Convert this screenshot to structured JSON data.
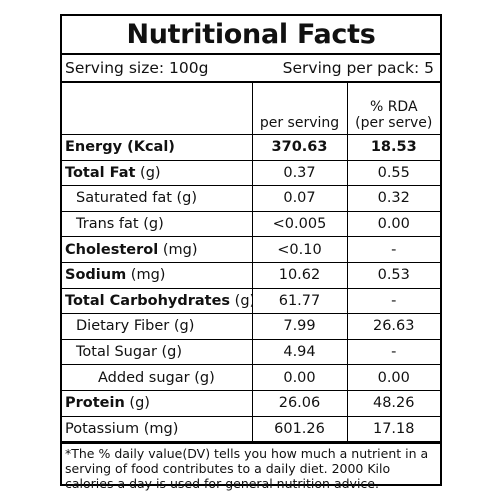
{
  "title": "Nutritional Facts",
  "serving": {
    "size": "Serving size: 100g",
    "per_pack": "Serving per pack: 5"
  },
  "header": {
    "per_serving": "per serving",
    "rda_line1": "% RDA",
    "rda_line2": "(per serve)"
  },
  "rows": [
    {
      "name": "Energy (Kcal)",
      "per_serving": "370.63",
      "rda": "18.53"
    },
    {
      "name_bold": "Total Fat",
      "unit": " (g)",
      "per_serving": "0.37",
      "rda": "0.55"
    },
    {
      "name": "Saturated fat (g)",
      "per_serving": "0.07",
      "rda": "0.32"
    },
    {
      "name": "Trans fat (g)",
      "per_serving": "<0.005",
      "rda": "0.00"
    },
    {
      "name_bold": "Cholesterol",
      "unit": " (mg)",
      "per_serving": "<0.10",
      "rda": "-"
    },
    {
      "name_bold": "Sodium",
      "unit": " (mg)",
      "per_serving": "10.62",
      "rda": "0.53"
    },
    {
      "name_bold": "Total Carbohydrates",
      "unit": " (g)",
      "per_serving": "61.77",
      "rda": "-"
    },
    {
      "name": "Dietary Fiber (g)",
      "per_serving": "7.99",
      "rda": "26.63"
    },
    {
      "name": "Total Sugar (g)",
      "per_serving": "4.94",
      "rda": "-"
    },
    {
      "name": "Added sugar (g)",
      "per_serving": "0.00",
      "rda": "0.00"
    },
    {
      "name_bold": "Protein",
      "unit": " (g)",
      "per_serving": "26.06",
      "rda": "48.26"
    },
    {
      "name": "Potassium (mg)",
      "per_serving": "601.26",
      "rda": "17.18"
    }
  ],
  "footnote": "*The % daily value(DV) tells you how much a nutrient in a serving of food contributes to a daily diet. 2000 Kilo calories a day is used for general nutrition advice."
}
